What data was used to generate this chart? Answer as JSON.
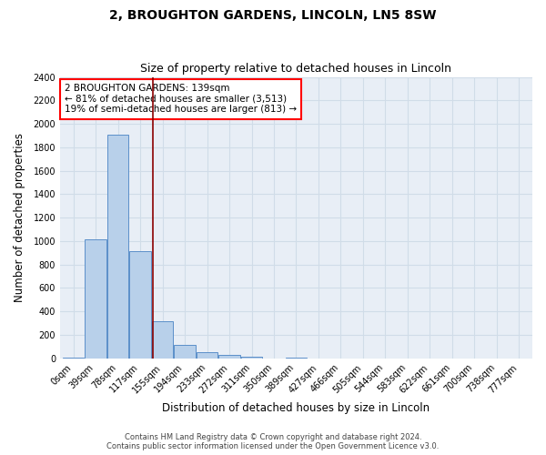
{
  "title": "2, BROUGHTON GARDENS, LINCOLN, LN5 8SW",
  "subtitle": "Size of property relative to detached houses in Lincoln",
  "xlabel": "Distribution of detached houses by size in Lincoln",
  "ylabel": "Number of detached properties",
  "categories": [
    "0sqm",
    "39sqm",
    "78sqm",
    "117sqm",
    "155sqm",
    "194sqm",
    "233sqm",
    "272sqm",
    "311sqm",
    "350sqm",
    "389sqm",
    "427sqm",
    "466sqm",
    "505sqm",
    "544sqm",
    "583sqm",
    "622sqm",
    "661sqm",
    "700sqm",
    "738sqm",
    "777sqm"
  ],
  "values": [
    10,
    1012,
    1910,
    915,
    315,
    112,
    52,
    28,
    15,
    0,
    5,
    0,
    0,
    0,
    0,
    0,
    0,
    0,
    0,
    0,
    0
  ],
  "bar_color": "#b8d0ea",
  "bar_edge_color": "#5b8fc9",
  "grid_color": "#d0dce8",
  "background_color": "#e8eef6",
  "vline_x": 3.57,
  "vline_color": "#8b0000",
  "annotation_text": "2 BROUGHTON GARDENS: 139sqm\n← 81% of detached houses are smaller (3,513)\n19% of semi-detached houses are larger (813) →",
  "annotation_box_color": "white",
  "annotation_box_edge_color": "red",
  "ylim": [
    0,
    2400
  ],
  "yticks": [
    0,
    200,
    400,
    600,
    800,
    1000,
    1200,
    1400,
    1600,
    1800,
    2000,
    2200,
    2400
  ],
  "footer_line1": "Contains HM Land Registry data © Crown copyright and database right 2024.",
  "footer_line2": "Contains public sector information licensed under the Open Government Licence v3.0.",
  "title_fontsize": 10,
  "subtitle_fontsize": 9,
  "tick_fontsize": 7,
  "label_fontsize": 8.5,
  "annotation_fontsize": 7.5,
  "footer_fontsize": 6
}
